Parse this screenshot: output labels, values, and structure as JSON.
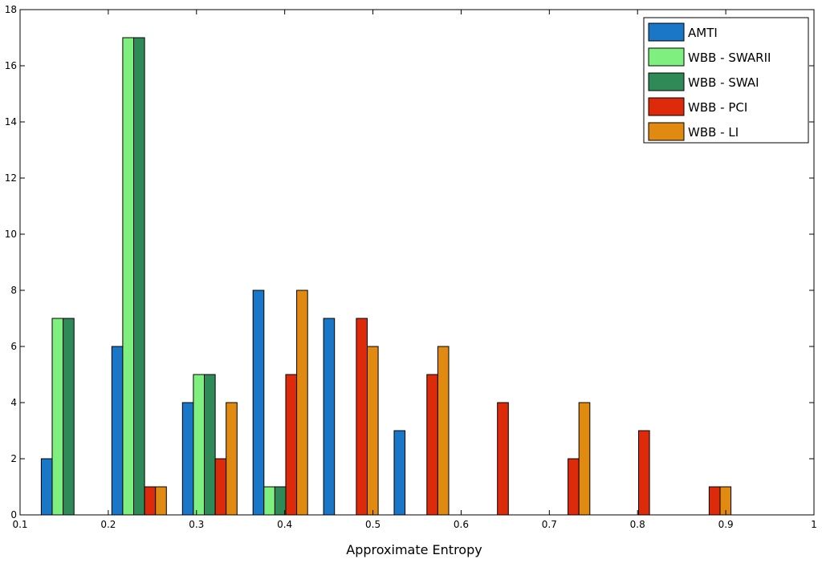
{
  "chart_data": {
    "type": "bar",
    "title": "",
    "xlabel": "Approximate Entropy",
    "ylabel": "",
    "xlim": [
      0.1,
      1.0
    ],
    "ylim": [
      0,
      18
    ],
    "x_ticks": [
      "0.1",
      "0.2",
      "0.3",
      "0.4",
      "0.5",
      "0.6",
      "0.7",
      "0.8",
      "0.9",
      "1"
    ],
    "y_ticks": [
      "0",
      "2",
      "4",
      "6",
      "8",
      "10",
      "12",
      "14",
      "16",
      "18"
    ],
    "grid": false,
    "legend_position": "top-right",
    "bin_centers": [
      0.155,
      0.235,
      0.315,
      0.395,
      0.475,
      0.555,
      0.635,
      0.715,
      0.795,
      0.875
    ],
    "series": [
      {
        "name": "AMTI",
        "color": "#1a77c8",
        "values": [
          2,
          6,
          4,
          8,
          7,
          3,
          0,
          0,
          0,
          0
        ]
      },
      {
        "name": "WBB - SWARII",
        "color": "#7ff07f",
        "values": [
          7,
          17,
          5,
          1,
          0,
          0,
          0,
          0,
          0,
          0
        ]
      },
      {
        "name": "WBB - SWAI",
        "color": "#2e8b57",
        "values": [
          7,
          17,
          5,
          1,
          0,
          0,
          0,
          0,
          0,
          0
        ]
      },
      {
        "name": "WBB - PCI",
        "color": "#dd2a0a",
        "values": [
          0,
          1,
          2,
          5,
          7,
          5,
          4,
          2,
          3,
          1
        ]
      },
      {
        "name": "WBB - LI",
        "color": "#e08a12",
        "values": [
          0,
          1,
          4,
          8,
          6,
          6,
          0,
          4,
          0,
          1
        ]
      }
    ]
  }
}
